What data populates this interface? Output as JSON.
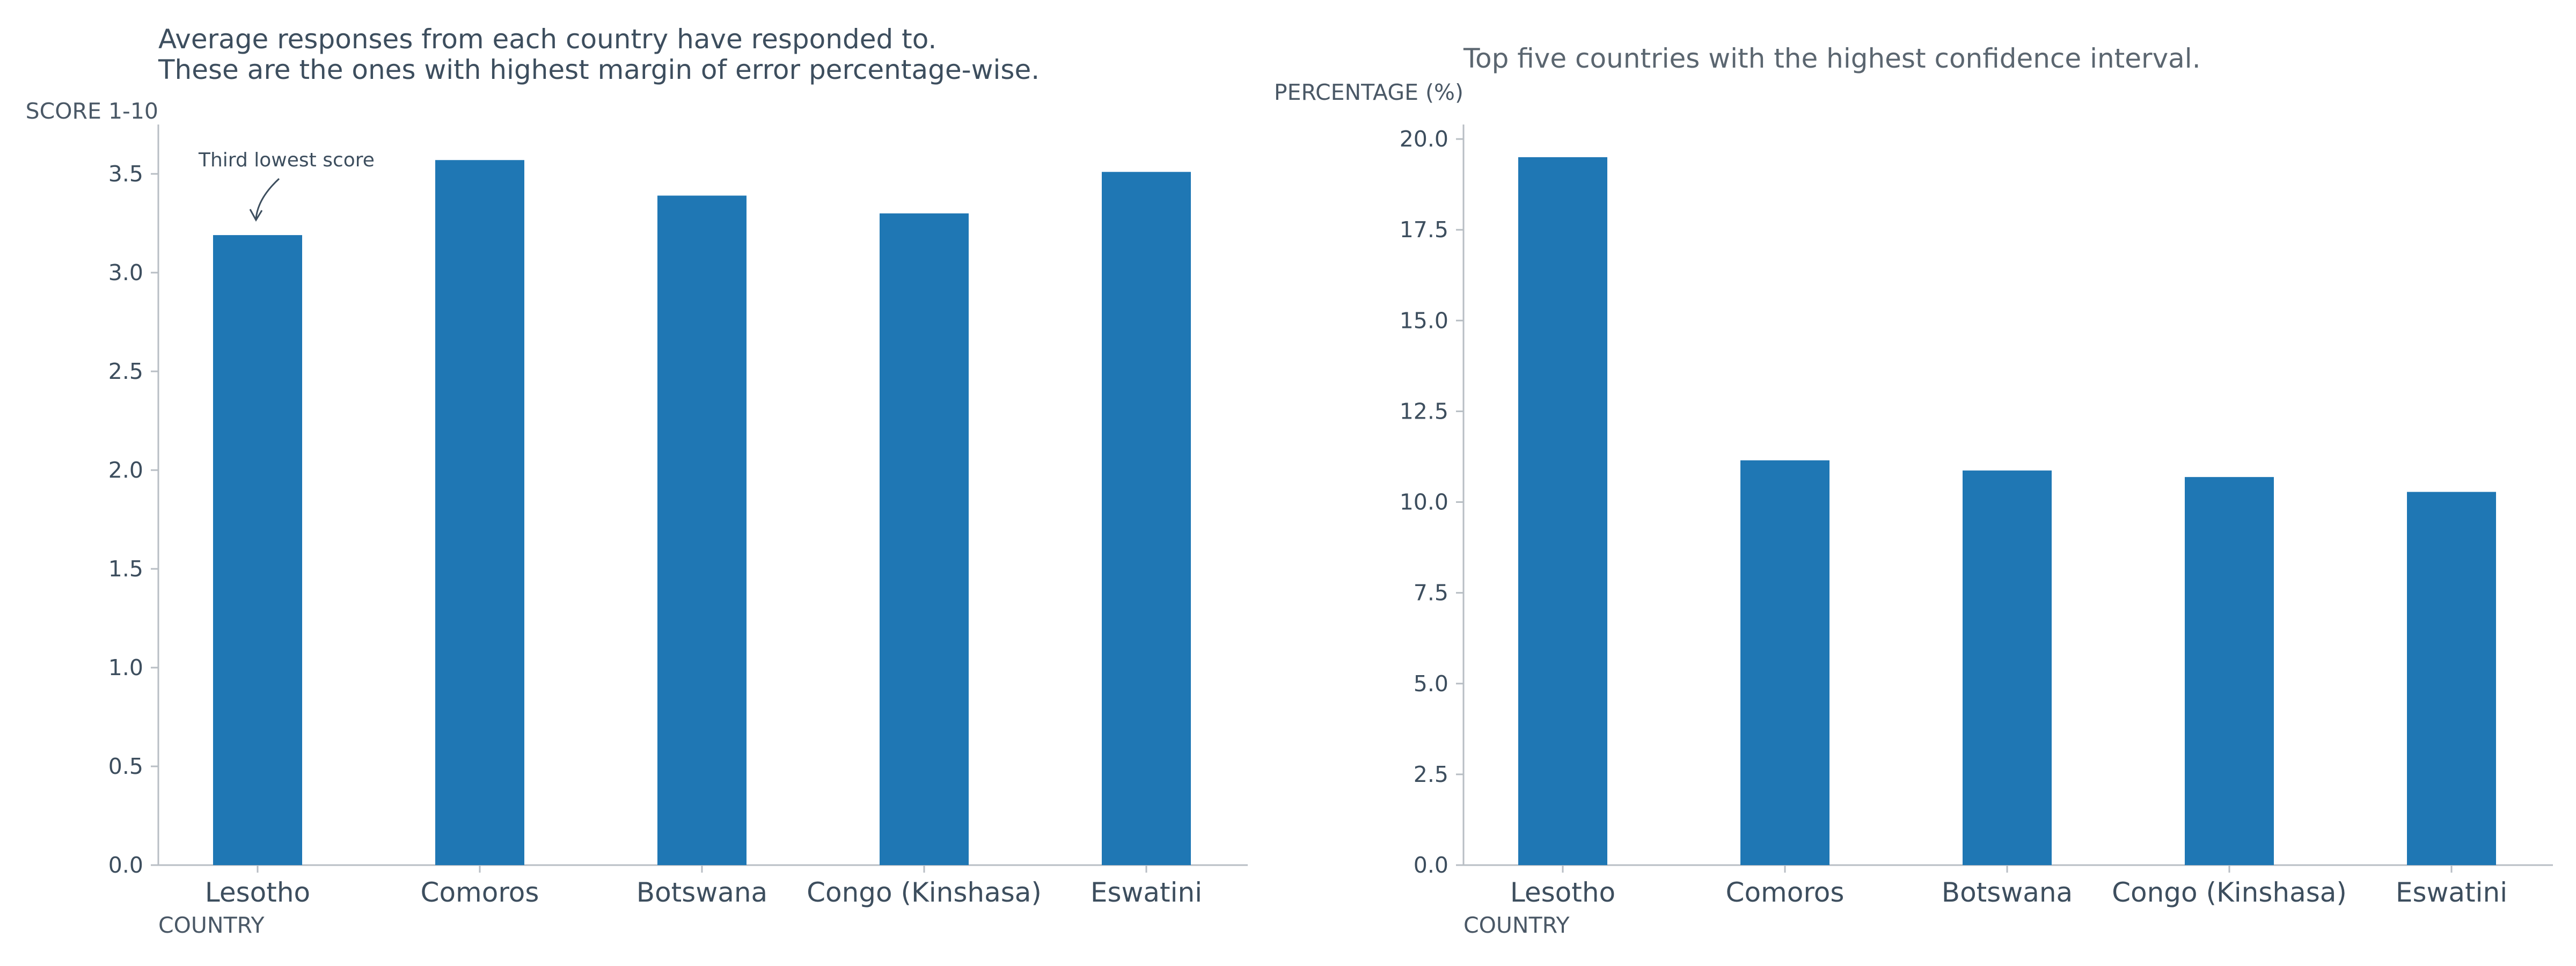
{
  "chart_data": [
    {
      "type": "bar",
      "title": "Average responses from each country have responded to.",
      "subtitle": "These are the ones with highest margin of error percentage-wise.",
      "xlabel": "COUNTRY",
      "ylabel": "SCORE 1-10",
      "categories": [
        "Lesotho",
        "Comoros",
        "Botswana",
        "Congo (Kinshasa)",
        "Eswatini"
      ],
      "values": [
        3.19,
        3.57,
        3.39,
        3.3,
        3.51
      ],
      "ylim": [
        0,
        3.75
      ],
      "yticks": [
        "0.0",
        "0.5",
        "1.0",
        "1.5",
        "2.0",
        "2.5",
        "3.0",
        "3.5"
      ],
      "grid": false,
      "bar_color": "#1f77b4",
      "annotation": {
        "text": "Third lowest score",
        "category": "Lesotho"
      }
    },
    {
      "type": "bar",
      "title": "Top five countries with the highest confidence interval.",
      "xlabel": "COUNTRY",
      "ylabel": "PERCENTAGE (%)",
      "categories": [
        "Lesotho",
        "Comoros",
        "Botswana",
        "Congo (Kinshasa)",
        "Eswatini"
      ],
      "values": [
        19.5,
        11.15,
        10.87,
        10.69,
        10.28
      ],
      "ylim": [
        0,
        20.4
      ],
      "yticks": [
        "0.0",
        "2.5",
        "5.0",
        "7.5",
        "10.0",
        "12.5",
        "15.0",
        "17.5",
        "20.0"
      ],
      "grid": false,
      "bar_color": "#1f77b4"
    }
  ]
}
